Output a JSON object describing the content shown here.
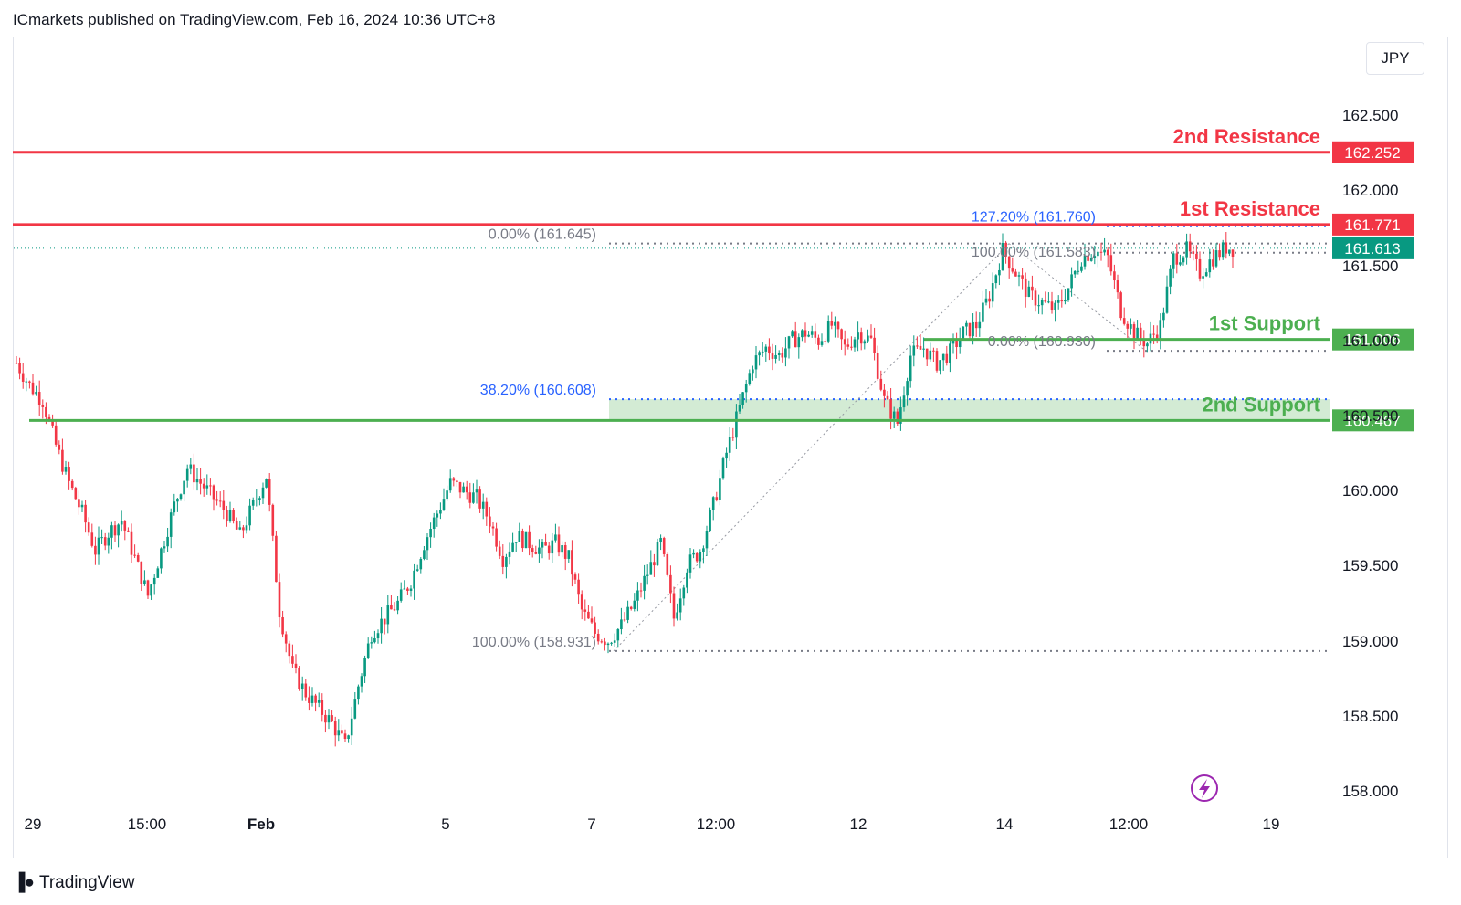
{
  "header": {
    "text": "ICmarkets published on TradingView.com, Feb 16, 2024 10:36 UTC+8"
  },
  "currency": "JPY",
  "footer": {
    "brand": "TradingView",
    "logo_icon": "tradingview-logo-icon"
  },
  "colors": {
    "up": "#089981",
    "down": "#f23645",
    "resistance": "#f23645",
    "support": "#4caf50",
    "fib_blue": "#2962ff",
    "fib_gray": "#787b86",
    "current_price": "#089981",
    "support_zone": "#c8e6c9"
  },
  "chart_data": {
    "type": "candlestick",
    "y_axis": {
      "ylim": [
        157.8,
        163.0
      ],
      "ticks": [
        "162.500",
        "162.000",
        "161.500",
        "161.000",
        "160.500",
        "160.000",
        "159.500",
        "159.000",
        "158.500",
        "158.000"
      ]
    },
    "x_axis": {
      "ticks": [
        "29",
        "15:00",
        "Feb",
        "5",
        "7",
        "12:00",
        "12",
        "14",
        "12:00",
        "19"
      ]
    },
    "levels": [
      {
        "name": "2nd Resistance",
        "price": 162.252,
        "label": "162.252",
        "kind": "resistance"
      },
      {
        "name": "1st Resistance",
        "price": 161.771,
        "label": "161.771",
        "kind": "resistance"
      },
      {
        "name": "1st Support",
        "price": 161.006,
        "label": "161.006",
        "kind": "support"
      },
      {
        "name": "2nd Support",
        "price": 160.467,
        "label": "160.467",
        "kind": "support"
      }
    ],
    "current_price": {
      "price": 161.613,
      "label": "161.613"
    },
    "fib_labels": [
      {
        "text": "0.00% (161.645)",
        "price": 161.645,
        "color": "gray"
      },
      {
        "text": "38.20% (160.608)",
        "price": 160.608,
        "color": "blue"
      },
      {
        "text": "100.00% (158.931)",
        "price": 158.931,
        "color": "gray"
      },
      {
        "text": "127.20% (161.760)",
        "price": 161.76,
        "color": "blue"
      },
      {
        "text": "100.00% (161.583)",
        "price": 161.583,
        "color": "gray"
      },
      {
        "text": "0.00% (160.930)",
        "price": 160.93,
        "color": "gray"
      }
    ],
    "ohlc_keypoints": [
      [
        0,
        160.85
      ],
      [
        4,
        160.7
      ],
      [
        8,
        160.6
      ],
      [
        12,
        160.3
      ],
      [
        16,
        160.05
      ],
      [
        20,
        159.85
      ],
      [
        24,
        159.6
      ],
      [
        28,
        159.72
      ],
      [
        32,
        159.8
      ],
      [
        36,
        159.55
      ],
      [
        40,
        159.3
      ],
      [
        44,
        159.6
      ],
      [
        48,
        159.9
      ],
      [
        52,
        160.15
      ],
      [
        56,
        160.05
      ],
      [
        60,
        159.95
      ],
      [
        64,
        159.85
      ],
      [
        68,
        159.7
      ],
      [
        72,
        159.9
      ],
      [
        76,
        160.1
      ],
      [
        80,
        159.2
      ],
      [
        84,
        158.8
      ],
      [
        88,
        158.65
      ],
      [
        92,
        158.55
      ],
      [
        96,
        158.45
      ],
      [
        100,
        158.3
      ],
      [
        104,
        158.7
      ],
      [
        108,
        159.05
      ],
      [
        112,
        159.15
      ],
      [
        116,
        159.25
      ],
      [
        120,
        159.4
      ],
      [
        124,
        159.65
      ],
      [
        128,
        159.85
      ],
      [
        132,
        160.05
      ],
      [
        136,
        160.0
      ],
      [
        140,
        159.95
      ],
      [
        144,
        159.8
      ],
      [
        148,
        159.55
      ],
      [
        152,
        159.7
      ],
      [
        156,
        159.65
      ],
      [
        160,
        159.6
      ],
      [
        164,
        159.65
      ],
      [
        168,
        159.55
      ],
      [
        172,
        159.2
      ],
      [
        176,
        159.05
      ],
      [
        180,
        159.0
      ],
      [
        184,
        159.1
      ],
      [
        188,
        159.25
      ],
      [
        192,
        159.45
      ],
      [
        196,
        159.65
      ],
      [
        200,
        159.15
      ],
      [
        204,
        159.5
      ],
      [
        208,
        159.6
      ],
      [
        212,
        159.9
      ],
      [
        216,
        160.25
      ],
      [
        220,
        160.55
      ],
      [
        224,
        160.85
      ],
      [
        228,
        160.95
      ],
      [
        232,
        160.9
      ],
      [
        236,
        161.0
      ],
      [
        240,
        161.05
      ],
      [
        244,
        161.0
      ],
      [
        248,
        161.1
      ],
      [
        252,
        160.95
      ],
      [
        256,
        161.05
      ],
      [
        260,
        161.0
      ],
      [
        264,
        160.6
      ],
      [
        268,
        160.45
      ],
      [
        272,
        160.9
      ],
      [
        276,
        160.95
      ],
      [
        280,
        160.85
      ],
      [
        284,
        160.92
      ],
      [
        288,
        161.05
      ],
      [
        292,
        161.1
      ],
      [
        296,
        161.3
      ],
      [
        300,
        161.6
      ],
      [
        304,
        161.45
      ],
      [
        308,
        161.3
      ],
      [
        312,
        161.25
      ],
      [
        316,
        161.2
      ],
      [
        320,
        161.35
      ],
      [
        324,
        161.55
      ],
      [
        328,
        161.6
      ],
      [
        332,
        161.55
      ],
      [
        336,
        161.2
      ],
      [
        340,
        161.05
      ],
      [
        344,
        160.98
      ],
      [
        348,
        161.1
      ],
      [
        352,
        161.55
      ],
      [
        356,
        161.6
      ],
      [
        360,
        161.45
      ],
      [
        364,
        161.55
      ],
      [
        368,
        161.62
      ],
      [
        370,
        161.613
      ]
    ]
  }
}
